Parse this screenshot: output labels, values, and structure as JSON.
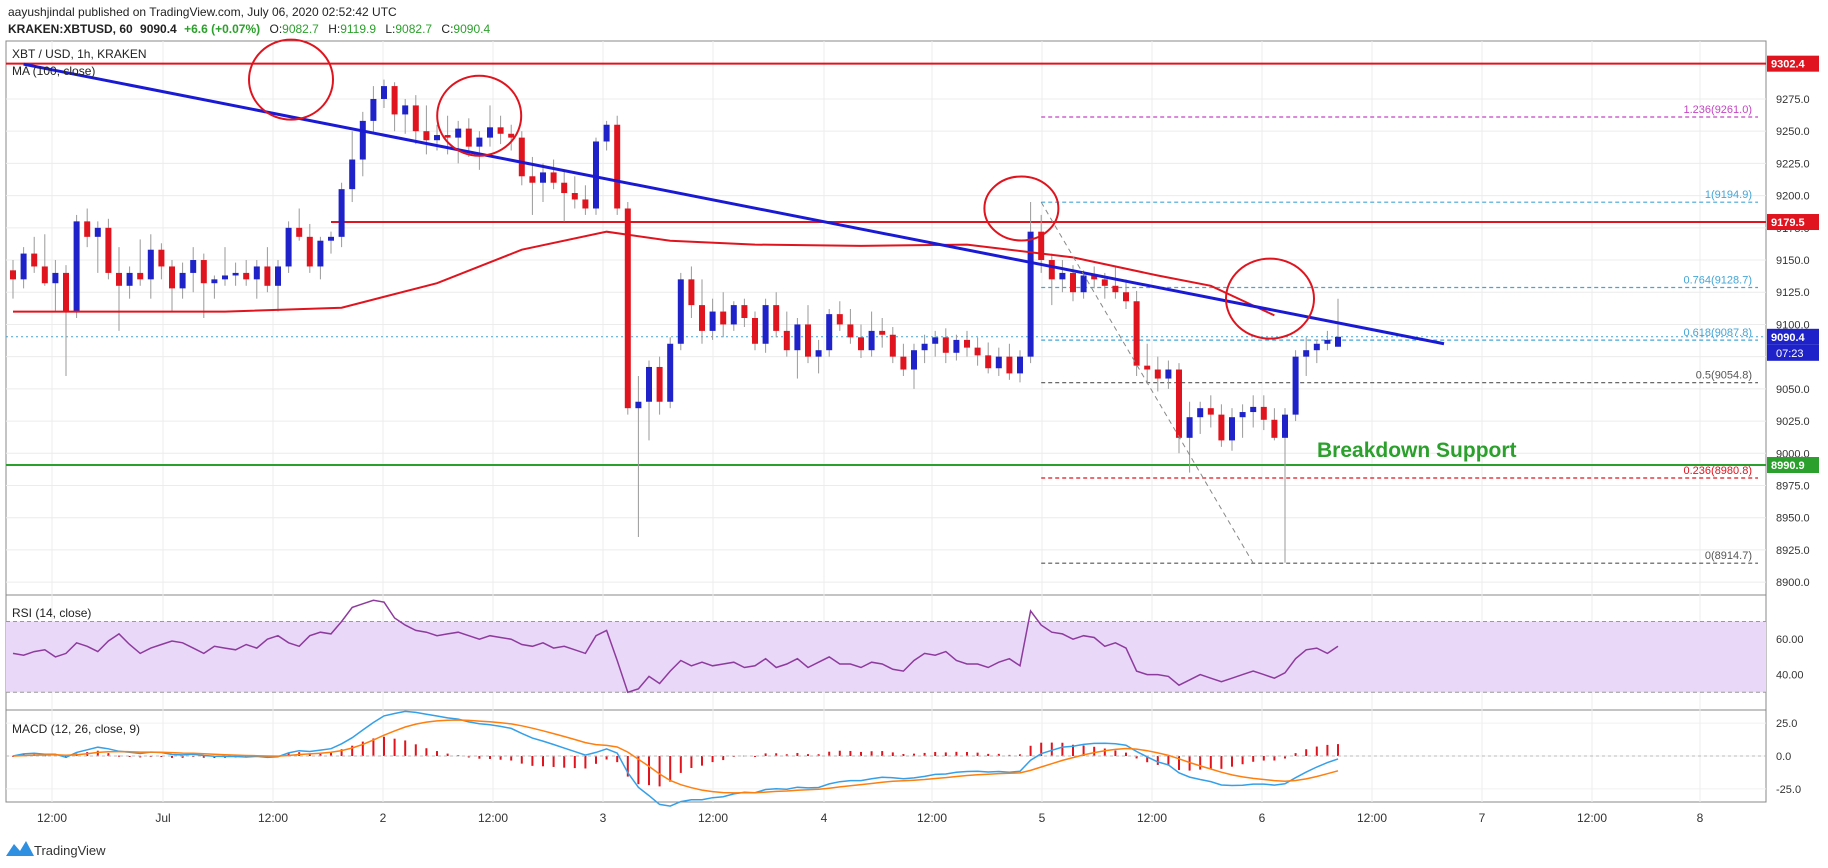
{
  "header": {
    "publisher_line": "aayushjindal published on TradingView.com, July 06, 2020 02:52:42 UTC",
    "symbol_line": {
      "symbol": "KRAKEN:XBTUSD, 60",
      "last": "9090.4",
      "change": "+6.6 (+0.07%)",
      "o_label": "O:",
      "o": "9082.7",
      "h_label": "H:",
      "h": "9119.9",
      "l_label": "L:",
      "l": "9082.7",
      "c_label": "C:",
      "c": "9090.4"
    }
  },
  "main_pane": {
    "title": "XBT / USD, 1h, KRAKEN",
    "ma_label": "MA (100, close)",
    "annotation": "Breakdown Support",
    "countdown": "07:23"
  },
  "rsi_pane": {
    "label": "RSI (14, close)"
  },
  "macd_pane": {
    "label": "MACD (12, 26, close, 9)"
  },
  "footer": {
    "brand": "TradingView"
  },
  "colors": {
    "up": "#1e22c8",
    "down": "#e0141e",
    "ma": "#e0141e",
    "trendline": "#1a1ad4",
    "resistance": "#e0141e",
    "support": "#2ca02c",
    "rsi_line": "#8e3b9e",
    "rsi_band": "#e9d8f7",
    "macd_line": "#35a0e8",
    "signal_line": "#ff7f0e",
    "hist_up": "#e0141e",
    "hist_down": "#e0141e",
    "circles": "#e0141e",
    "fib_magenta": "#c445c4",
    "fib_blue": "#45a6d6",
    "fib_black": "#555555",
    "fib_red": "#e0141e"
  },
  "chart_data": [
    {
      "type": "candlestick",
      "title": "XBT / USD, 1h, KRAKEN",
      "ylim": [
        8890,
        9320
      ],
      "y_ticks": [
        8900,
        8925,
        8950,
        8975,
        9000,
        9025,
        9050,
        9075,
        9100,
        9125,
        9150,
        9175,
        9200,
        9225,
        9250,
        9275
      ],
      "x_ticks": [
        "12:00",
        "Jul",
        "12:00",
        "2",
        "12:00",
        "3",
        "12:00",
        "4",
        "12:00",
        "5",
        "12:00",
        "6",
        "12:00",
        "7",
        "12:00",
        "8"
      ],
      "candles_ohlc": [
        [
          9142,
          9150,
          9120,
          9135
        ],
        [
          9135,
          9160,
          9128,
          9155
        ],
        [
          9155,
          9168,
          9140,
          9145
        ],
        [
          9145,
          9170,
          9130,
          9132
        ],
        [
          9132,
          9150,
          9110,
          9140
        ],
        [
          9140,
          9146,
          9060,
          9110
        ],
        [
          9110,
          9185,
          9105,
          9180
        ],
        [
          9180,
          9190,
          9160,
          9168
        ],
        [
          9168,
          9180,
          9140,
          9175
        ],
        [
          9175,
          9182,
          9135,
          9140
        ],
        [
          9140,
          9160,
          9095,
          9130
        ],
        [
          9130,
          9145,
          9120,
          9140
        ],
        [
          9140,
          9166,
          9130,
          9135
        ],
        [
          9135,
          9170,
          9120,
          9158
        ],
        [
          9158,
          9163,
          9135,
          9145
        ],
        [
          9145,
          9150,
          9110,
          9128
        ],
        [
          9128,
          9148,
          9120,
          9140
        ],
        [
          9140,
          9160,
          9125,
          9150
        ],
        [
          9150,
          9155,
          9105,
          9132
        ],
        [
          9132,
          9138,
          9120,
          9135
        ],
        [
          9135,
          9160,
          9130,
          9138
        ],
        [
          9138,
          9148,
          9130,
          9140
        ],
        [
          9140,
          9150,
          9130,
          9135
        ],
        [
          9135,
          9150,
          9120,
          9145
        ],
        [
          9145,
          9160,
          9125,
          9130
        ],
        [
          9130,
          9150,
          9110,
          9145
        ],
        [
          9145,
          9180,
          9140,
          9175
        ],
        [
          9175,
          9190,
          9165,
          9168
        ],
        [
          9168,
          9178,
          9140,
          9145
        ],
        [
          9145,
          9168,
          9135,
          9165
        ],
        [
          9165,
          9172,
          9155,
          9168
        ],
        [
          9168,
          9210,
          9160,
          9205
        ],
        [
          9205,
          9250,
          9195,
          9228
        ],
        [
          9228,
          9265,
          9215,
          9258
        ],
        [
          9258,
          9285,
          9248,
          9275
        ],
        [
          9275,
          9290,
          9268,
          9285
        ],
        [
          9285,
          9288,
          9250,
          9263
        ],
        [
          9263,
          9275,
          9248,
          9270
        ],
        [
          9270,
          9278,
          9240,
          9250
        ],
        [
          9250,
          9270,
          9232,
          9243
        ],
        [
          9243,
          9255,
          9235,
          9247
        ],
        [
          9247,
          9262,
          9232,
          9245
        ],
        [
          9245,
          9258,
          9225,
          9252
        ],
        [
          9252,
          9260,
          9230,
          9238
        ],
        [
          9238,
          9250,
          9220,
          9245
        ],
        [
          9245,
          9270,
          9238,
          9253
        ],
        [
          9253,
          9262,
          9240,
          9248
        ],
        [
          9248,
          9255,
          9235,
          9245
        ],
        [
          9245,
          9250,
          9208,
          9215
        ],
        [
          9215,
          9230,
          9185,
          9210
        ],
        [
          9210,
          9225,
          9195,
          9218
        ],
        [
          9218,
          9228,
          9205,
          9210
        ],
        [
          9210,
          9220,
          9180,
          9202
        ],
        [
          9202,
          9215,
          9190,
          9197
        ],
        [
          9197,
          9208,
          9185,
          9190
        ],
        [
          9190,
          9245,
          9185,
          9242
        ],
        [
          9242,
          9258,
          9235,
          9255
        ],
        [
          9255,
          9262,
          9185,
          9190
        ],
        [
          9190,
          9195,
          9030,
          9035
        ],
        [
          9035,
          9060,
          8935,
          9040
        ],
        [
          9040,
          9072,
          9010,
          9067
        ],
        [
          9067,
          9075,
          9030,
          9040
        ],
        [
          9040,
          9090,
          9035,
          9085
        ],
        [
          9085,
          9140,
          9080,
          9135
        ],
        [
          9135,
          9145,
          9105,
          9115
        ],
        [
          9115,
          9135,
          9085,
          9095
        ],
        [
          9095,
          9120,
          9088,
          9110
        ],
        [
          9110,
          9125,
          9090,
          9100
        ],
        [
          9100,
          9118,
          9095,
          9115
        ],
        [
          9115,
          9120,
          9098,
          9105
        ],
        [
          9105,
          9110,
          9080,
          9085
        ],
        [
          9085,
          9120,
          9078,
          9115
        ],
        [
          9115,
          9125,
          9090,
          9095
        ],
        [
          9095,
          9110,
          9075,
          9080
        ],
        [
          9080,
          9105,
          9058,
          9100
        ],
        [
          9100,
          9115,
          9070,
          9075
        ],
        [
          9075,
          9088,
          9062,
          9080
        ],
        [
          9080,
          9112,
          9075,
          9108
        ],
        [
          9108,
          9118,
          9095,
          9100
        ],
        [
          9100,
          9112,
          9085,
          9090
        ],
        [
          9090,
          9100,
          9074,
          9080
        ],
        [
          9080,
          9110,
          9075,
          9095
        ],
        [
          9095,
          9105,
          9082,
          9092
        ],
        [
          9092,
          9098,
          9070,
          9075
        ],
        [
          9075,
          9085,
          9060,
          9065
        ],
        [
          9065,
          9085,
          9050,
          9080
        ],
        [
          9080,
          9092,
          9070,
          9085
        ],
        [
          9085,
          9095,
          9075,
          9090
        ],
        [
          9090,
          9097,
          9070,
          9078
        ],
        [
          9078,
          9092,
          9072,
          9088
        ],
        [
          9088,
          9095,
          9075,
          9082
        ],
        [
          9082,
          9090,
          9068,
          9076
        ],
        [
          9076,
          9086,
          9062,
          9066
        ],
        [
          9066,
          9082,
          9060,
          9075
        ],
        [
          9075,
          9085,
          9057,
          9062
        ],
        [
          9062,
          9080,
          9055,
          9075
        ],
        [
          9075,
          9195,
          9070,
          9172
        ],
        [
          9172,
          9185,
          9140,
          9150
        ],
        [
          9150,
          9155,
          9115,
          9135
        ],
        [
          9135,
          9150,
          9125,
          9140
        ],
        [
          9140,
          9146,
          9118,
          9125
        ],
        [
          9125,
          9142,
          9120,
          9138
        ],
        [
          9138,
          9145,
          9128,
          9135
        ],
        [
          9135,
          9140,
          9120,
          9130
        ],
        [
          9130,
          9145,
          9120,
          9125
        ],
        [
          9125,
          9135,
          9112,
          9118
        ],
        [
          9118,
          9126,
          9060,
          9068
        ],
        [
          9068,
          9085,
          9055,
          9065
        ],
        [
          9065,
          9075,
          9048,
          9058
        ],
        [
          9058,
          9072,
          9050,
          9065
        ],
        [
          9065,
          9070,
          9000,
          9012
        ],
        [
          9012,
          9040,
          8985,
          9028
        ],
        [
          9028,
          9040,
          9015,
          9035
        ],
        [
          9035,
          9045,
          9020,
          9030
        ],
        [
          9030,
          9038,
          9005,
          9010
        ],
        [
          9010,
          9035,
          9002,
          9028
        ],
        [
          9028,
          9038,
          9012,
          9032
        ],
        [
          9032,
          9045,
          9020,
          9036
        ],
        [
          9036,
          9045,
          9018,
          9026
        ],
        [
          9026,
          9035,
          9010,
          9012
        ],
        [
          9012,
          9035,
          8915,
          9030
        ],
        [
          9030,
          9080,
          9025,
          9075
        ],
        [
          9075,
          9090,
          9060,
          9080
        ],
        [
          9080,
          9088,
          9070,
          9085
        ],
        [
          9085,
          9095,
          9080,
          9088
        ],
        [
          9082.7,
          9119.9,
          9082.7,
          9090.4
        ]
      ],
      "ma_100": [
        [
          0,
          9110
        ],
        [
          20,
          9110
        ],
        [
          31,
          9113
        ],
        [
          40,
          9132
        ],
        [
          48,
          9158
        ],
        [
          56,
          9172
        ],
        [
          62,
          9165
        ],
        [
          70,
          9162
        ],
        [
          80,
          9161
        ],
        [
          90,
          9162
        ],
        [
          100,
          9152
        ],
        [
          108,
          9138
        ],
        [
          113,
          9130
        ],
        [
          119,
          9107
        ]
      ],
      "levels": [
        {
          "name": "resistance",
          "y": 9302.4,
          "label": "9302.4"
        },
        {
          "name": "resistance-mid",
          "y": 9179.5,
          "label": "9179.5"
        },
        {
          "name": "support",
          "y": 8990.9,
          "label": "8990.9"
        },
        {
          "name": "last-price",
          "y": 9090.4,
          "label": "9090.4"
        }
      ],
      "trendline": {
        "from": [
          1,
          9302
        ],
        "to": [
          135,
          9085
        ]
      },
      "fibonacci": [
        {
          "ratio": "1.236(9261.0)",
          "y": 9261.0,
          "color": "fib_magenta"
        },
        {
          "ratio": "1(9194.9)",
          "y": 9194.9,
          "color": "fib_blue"
        },
        {
          "ratio": "0.764(9128.7)",
          "y": 9128.7,
          "color": "fib_blue"
        },
        {
          "ratio": "0.618(9087.8)",
          "y": 9087.8,
          "color": "fib_blue"
        },
        {
          "ratio": "0.5(9054.8)",
          "y": 9054.8,
          "color": "fib_black"
        },
        {
          "ratio": "0.236(8980.8)",
          "y": 8980.8,
          "color": "fib_red"
        },
        {
          "ratio": "0(8914.7)",
          "y": 8914.7,
          "color": "fib_black"
        }
      ]
    },
    {
      "type": "line",
      "title": "RSI (14, close)",
      "ylim": [
        20,
        85
      ],
      "y_ticks": [
        40,
        60
      ],
      "band": [
        30,
        70
      ],
      "values": [
        52,
        51,
        53,
        54,
        50,
        52,
        58,
        56,
        53,
        59,
        63,
        57,
        52,
        55,
        57,
        59,
        58,
        55,
        52,
        56,
        55,
        54,
        57,
        55,
        60,
        62,
        58,
        56,
        62,
        64,
        63,
        70,
        78,
        80,
        82,
        81,
        72,
        68,
        65,
        64,
        62,
        63,
        64,
        62,
        60,
        62,
        61,
        60,
        57,
        56,
        58,
        55,
        56,
        54,
        52,
        62,
        65,
        48,
        30,
        32,
        39,
        35,
        42,
        48,
        45,
        47,
        45,
        46,
        47,
        44,
        45,
        49,
        44,
        46,
        49,
        44,
        47,
        50,
        46,
        46,
        44,
        47,
        46,
        43,
        42,
        48,
        52,
        51,
        53,
        48,
        46,
        46,
        44,
        47,
        49,
        45,
        76,
        68,
        64,
        63,
        60,
        62,
        61,
        56,
        58,
        55,
        42,
        40,
        40,
        39,
        34,
        37,
        40,
        38,
        36,
        38,
        40,
        42,
        40,
        38,
        41,
        49,
        54,
        55,
        52,
        56
      ]
    },
    {
      "type": "line",
      "title": "MACD (12, 26, close, 9)",
      "ylim": [
        -35,
        35
      ],
      "y_ticks": [
        25.0,
        0.0,
        -25.0
      ],
      "y_tick_labels": [
        "25.0",
        "0.0",
        "-25.0"
      ]
    }
  ]
}
